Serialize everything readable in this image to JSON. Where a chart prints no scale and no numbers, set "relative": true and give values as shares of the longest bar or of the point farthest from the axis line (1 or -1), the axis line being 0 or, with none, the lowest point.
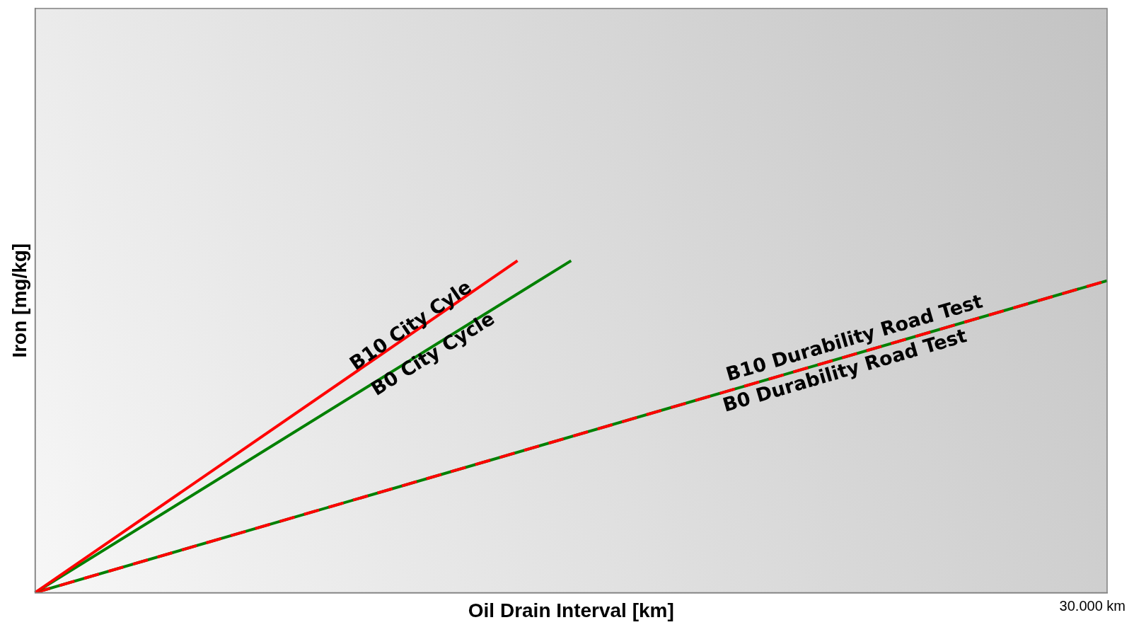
{
  "chart_data": {
    "type": "line",
    "relative": true,
    "xlabel": "Oil Drain Interval [km]",
    "ylabel": "Iron [mg/kg]",
    "annotations": [
      "30.000 km"
    ],
    "grid": false,
    "legend": false,
    "marker": "none",
    "categories": [
      null,
      null,
      null,
      null,
      null,
      null,
      null,
      null,
      null,
      null,
      null,
      null,
      null,
      null,
      null,
      null,
      null,
      null,
      null,
      null,
      null
    ],
    "series": [
      {
        "name": "B10 City Cyle",
        "color": "#ff0000",
        "values": [
          0,
          null,
          null,
          null,
          null,
          null,
          null,
          null,
          null,
          1,
          null,
          null,
          null,
          null,
          null,
          null,
          null,
          null,
          null,
          null,
          null
        ],
        "line_style": "solid"
      },
      {
        "name": "B0 City Cycle",
        "color": "#008000",
        "values": [
          0,
          null,
          null,
          null,
          null,
          null,
          null,
          null,
          null,
          null,
          1,
          null,
          null,
          null,
          null,
          null,
          null,
          null,
          null,
          null,
          null
        ],
        "line_style": "solid"
      },
      {
        "name": "B10 Durability Road Test",
        "color": "#ff0000",
        "values": [
          0,
          null,
          null,
          null,
          null,
          null,
          null,
          null,
          null,
          null,
          null,
          null,
          null,
          null,
          null,
          null,
          null,
          null,
          null,
          null,
          0.94
        ],
        "line_style": "dashed"
      },
      {
        "name": "B0 Durability Road Test",
        "color": "#008000",
        "values": [
          0,
          null,
          null,
          null,
          null,
          null,
          null,
          null,
          null,
          null,
          null,
          null,
          null,
          null,
          null,
          null,
          null,
          null,
          null,
          null,
          0.94
        ],
        "line_style": "solid"
      }
    ]
  }
}
